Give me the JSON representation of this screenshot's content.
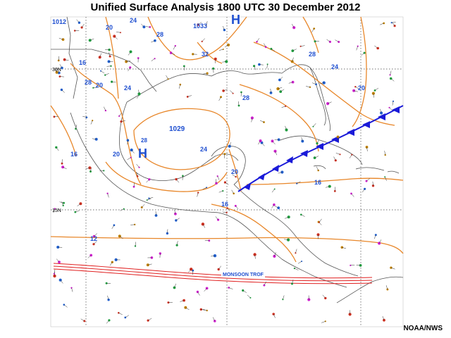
{
  "title": "Unified Surface Analysis 1800 UTC 30 December 2012",
  "credit": "NOAA/NWS",
  "colors": {
    "isobar": "#e8872a",
    "label": "#1f4fd0",
    "coast": "#555555",
    "cold_front": "#1a1ad8",
    "trough": "#e02020",
    "grid": "#444444"
  },
  "latitude_labels": [
    "30N",
    "15N"
  ],
  "isobar_labels": [
    "1012",
    "24",
    "28",
    "20",
    "16",
    "32",
    "1033",
    "24",
    "28",
    "20",
    "20",
    "24",
    "1029",
    "28",
    "24",
    "20",
    "16",
    "16",
    "16",
    "12",
    "20",
    "28"
  ],
  "highs": [
    {
      "symbol": "H",
      "pressure": "1029",
      "value": "28"
    },
    {
      "symbol": "H",
      "pressure": "1033",
      "value": ""
    }
  ],
  "features": {
    "monsoon_trough": "MONSOON TROF"
  },
  "icons": [
    "high-pressure-icon",
    "cold-front-icon",
    "trough-icon"
  ]
}
